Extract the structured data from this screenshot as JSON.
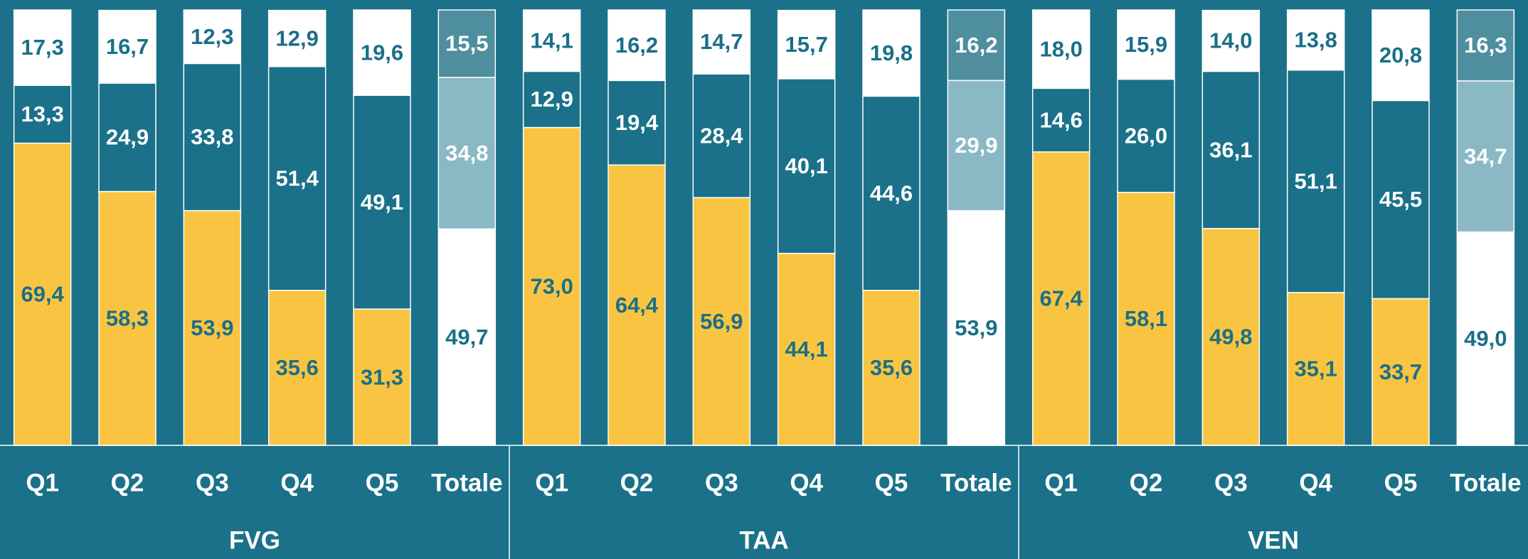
{
  "chart_data": {
    "type": "bar",
    "stacked": true,
    "ylim": [
      0,
      100
    ],
    "groups": [
      {
        "name": "FVG",
        "categories": [
          "Q1",
          "Q2",
          "Q3",
          "Q4",
          "Q5",
          "Totale"
        ]
      },
      {
        "name": "TAA",
        "categories": [
          "Q1",
          "Q2",
          "Q3",
          "Q4",
          "Q5",
          "Totale"
        ]
      },
      {
        "name": "VEN",
        "categories": [
          "Q1",
          "Q2",
          "Q3",
          "Q4",
          "Q5",
          "Totale"
        ]
      }
    ],
    "series": [
      {
        "color": "#f9c442",
        "total_color": "#ffffff",
        "label_color": "#1a6f87",
        "total_label_color": "#1a6f87",
        "values": [
          69.4,
          58.3,
          53.9,
          35.6,
          31.3,
          49.7,
          73.0,
          64.4,
          56.9,
          44.1,
          35.6,
          53.9,
          67.4,
          58.1,
          49.8,
          35.1,
          33.7,
          49.0
        ],
        "value_labels": [
          "69,4",
          "58,3",
          "53,9",
          "35,6",
          "31,3",
          "49,7",
          "73,0",
          "64,4",
          "56,9",
          "44,1",
          "35,6",
          "53,9",
          "67,4",
          "58,1",
          "49,8",
          "35,1",
          "33,7",
          "49,0"
        ]
      },
      {
        "color": "#1a7189",
        "total_color": "#8ab8c5",
        "label_color": "#ffffff",
        "total_label_color": "#ffffff",
        "values": [
          13.3,
          24.9,
          33.8,
          51.4,
          49.1,
          34.8,
          12.9,
          19.4,
          28.4,
          40.1,
          44.6,
          29.9,
          14.6,
          26.0,
          36.1,
          51.1,
          45.5,
          34.7
        ],
        "value_labels": [
          "13,3",
          "24,9",
          "33,8",
          "51,4",
          "49,1",
          "34,8",
          "12,9",
          "19,4",
          "28,4",
          "40,1",
          "44,6",
          "29,9",
          "14,6",
          "26,0",
          "36,1",
          "51,1",
          "45,5",
          "34,7"
        ]
      },
      {
        "color": "#ffffff",
        "total_color": "#4f8e9f",
        "label_color": "#1a6f87",
        "total_label_color": "#ffffff",
        "values": [
          17.3,
          16.7,
          12.3,
          12.9,
          19.6,
          15.5,
          14.1,
          16.2,
          14.7,
          15.7,
          19.8,
          16.2,
          18.0,
          15.9,
          14.0,
          13.8,
          20.8,
          16.3
        ],
        "value_labels": [
          "17,3",
          "16,7",
          "12,3",
          "12,9",
          "19,6",
          "15,5",
          "14,1",
          "16,2",
          "14,7",
          "15,7",
          "19,8",
          "16,2",
          "18,0",
          "15,9",
          "14,0",
          "13,8",
          "20,8",
          "16,3"
        ]
      }
    ]
  }
}
